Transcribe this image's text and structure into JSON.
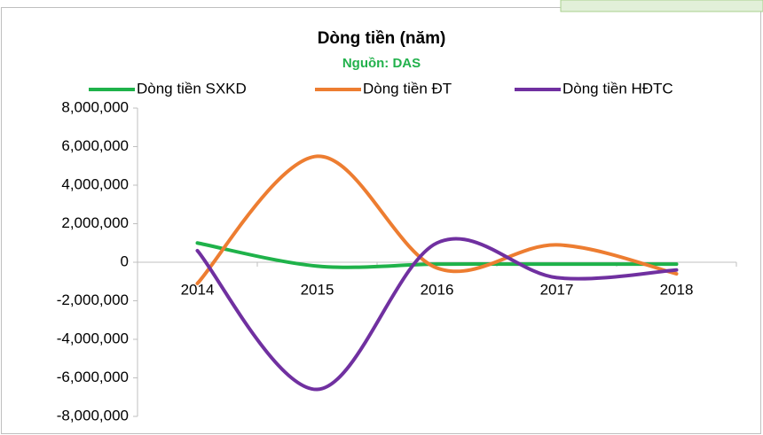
{
  "chart_data": {
    "type": "line",
    "title": "Dòng tiền (năm)",
    "subtitle": "Nguồn: DAS",
    "categories": [
      "2014",
      "2015",
      "2016",
      "2017",
      "2018"
    ],
    "series": [
      {
        "name": "Dòng tiền SXKD",
        "color": "#1fb24a",
        "values": [
          1000000,
          -200000,
          -100000,
          -100000,
          -100000
        ]
      },
      {
        "name": "Dòng tiền ĐT",
        "color": "#ed7d31",
        "values": [
          -1100000,
          5500000,
          -300000,
          900000,
          -600000
        ]
      },
      {
        "name": "Dòng tiền HĐTC",
        "color": "#7030a0",
        "values": [
          600000,
          -6600000,
          1000000,
          -800000,
          -400000
        ]
      }
    ],
    "ylim": [
      -8000000,
      8000000
    ],
    "yticks": [
      {
        "value": -8000000,
        "label": "-8,000,000"
      },
      {
        "value": -6000000,
        "label": "-6,000,000"
      },
      {
        "value": -4000000,
        "label": "-4,000,000"
      },
      {
        "value": -2000000,
        "label": "-2,000,000"
      },
      0,
      {
        "value": 2000000,
        "label": "2,000,000"
      },
      {
        "value": 4000000,
        "label": "4,000,000"
      },
      {
        "value": 6000000,
        "label": "6,000,000"
      },
      {
        "value": 8000000,
        "label": "8,000,000"
      }
    ],
    "legend": "top",
    "smooth": true
  }
}
